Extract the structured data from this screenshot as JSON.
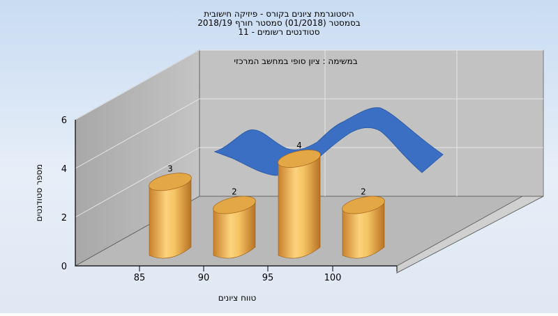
{
  "chart_data": {
    "type": "bar",
    "title_lines": [
      "היסטוגרמת ציונים בקורס - פיזיקה חישובית",
      "בסמסטר  (01/2018)  סמסטר חורף 2018/19",
      "סטודנטים רשומים - 11"
    ],
    "annotation": "במשימה : ציון סופי במחשב המרכזי",
    "xlabel": "טווח ציונים",
    "ylabel": "מספר סטודנטים",
    "ylim": [
      0,
      6
    ],
    "yticks": [
      0,
      2,
      4,
      6
    ],
    "x_tick_labels": [
      "85",
      "90",
      "95",
      "100"
    ],
    "values": [
      3,
      2,
      4,
      2
    ],
    "data_labels": [
      "3",
      "2",
      "4",
      "2"
    ],
    "bar_color": "#e3a746",
    "curve_color": "#3a6fc4",
    "grid": true
  }
}
